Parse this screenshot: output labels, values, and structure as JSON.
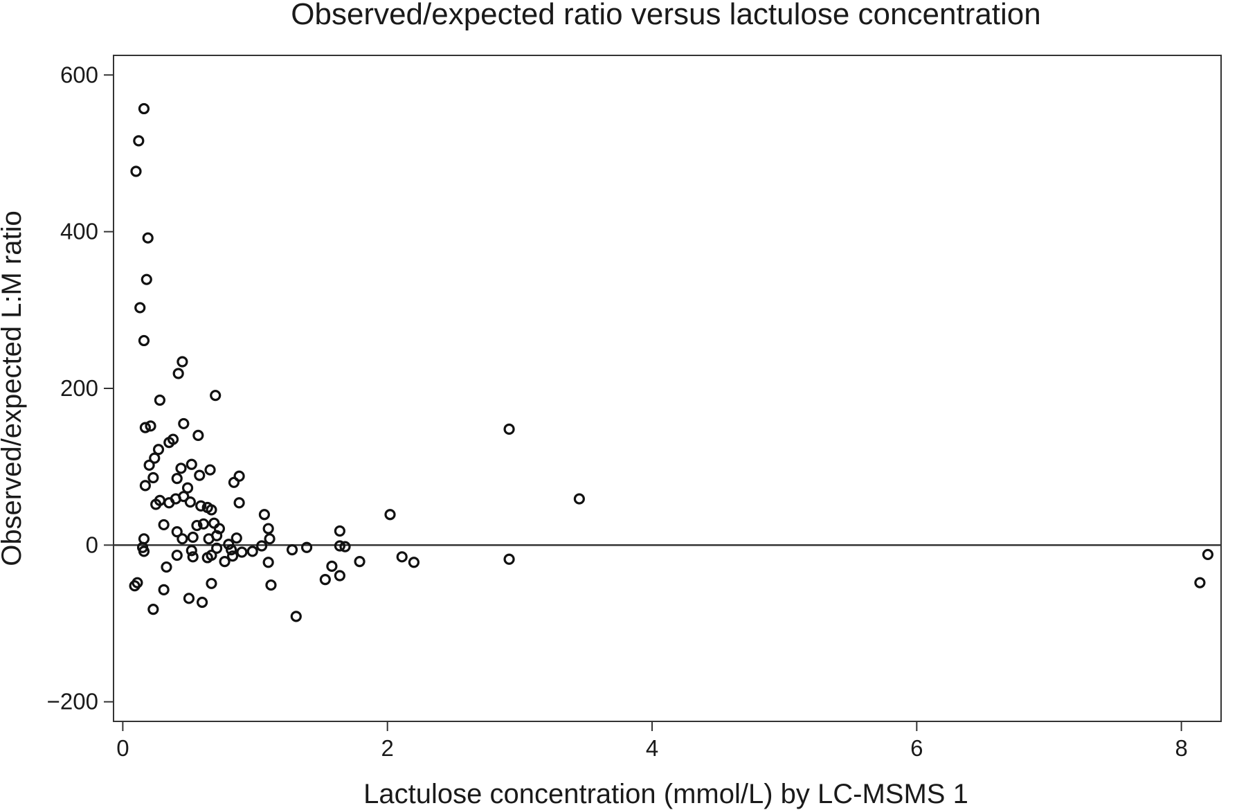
{
  "chart_data": {
    "type": "scatter",
    "title": "Observed/expected ratio versus lactulose concentration",
    "xlabel": "Lactulose concentration (mmol/L) by LC-MSMS 1",
    "ylabel": "Observed/expected L:M ratio",
    "xlim": [
      -0.07,
      8.3
    ],
    "ylim": [
      -225,
      625
    ],
    "xticks": [
      0,
      2,
      4,
      6,
      8
    ],
    "yticks": [
      -200,
      0,
      200,
      400,
      600
    ],
    "xtick_labels": [
      "0",
      "2",
      "4",
      "6",
      "8"
    ],
    "ytick_labels": [
      "−200",
      "0",
      "200",
      "400",
      "600"
    ],
    "reference_line_y": 0,
    "grid": false,
    "legend": "none",
    "points": [
      {
        "x": 0.16,
        "y": 557
      },
      {
        "x": 0.12,
        "y": 516
      },
      {
        "x": 0.1,
        "y": 477
      },
      {
        "x": 0.19,
        "y": 392
      },
      {
        "x": 0.18,
        "y": 339
      },
      {
        "x": 0.13,
        "y": 303
      },
      {
        "x": 0.16,
        "y": 261
      },
      {
        "x": 0.45,
        "y": 234
      },
      {
        "x": 0.42,
        "y": 219
      },
      {
        "x": 0.7,
        "y": 191
      },
      {
        "x": 0.28,
        "y": 185
      },
      {
        "x": 0.46,
        "y": 155
      },
      {
        "x": 0.17,
        "y": 150
      },
      {
        "x": 0.21,
        "y": 152
      },
      {
        "x": 0.57,
        "y": 140
      },
      {
        "x": 0.38,
        "y": 135
      },
      {
        "x": 0.35,
        "y": 131
      },
      {
        "x": 2.92,
        "y": 148
      },
      {
        "x": 0.27,
        "y": 122
      },
      {
        "x": 0.2,
        "y": 102
      },
      {
        "x": 0.52,
        "y": 103
      },
      {
        "x": 0.44,
        "y": 98
      },
      {
        "x": 0.66,
        "y": 96
      },
      {
        "x": 0.24,
        "y": 111
      },
      {
        "x": 0.23,
        "y": 86
      },
      {
        "x": 0.41,
        "y": 85
      },
      {
        "x": 0.58,
        "y": 89
      },
      {
        "x": 0.88,
        "y": 88
      },
      {
        "x": 0.84,
        "y": 80
      },
      {
        "x": 0.17,
        "y": 76
      },
      {
        "x": 0.49,
        "y": 73
      },
      {
        "x": 0.46,
        "y": 62
      },
      {
        "x": 0.4,
        "y": 59
      },
      {
        "x": 0.28,
        "y": 57
      },
      {
        "x": 0.51,
        "y": 55
      },
      {
        "x": 0.35,
        "y": 54
      },
      {
        "x": 0.25,
        "y": 52
      },
      {
        "x": 0.88,
        "y": 54
      },
      {
        "x": 0.59,
        "y": 50
      },
      {
        "x": 0.64,
        "y": 48
      },
      {
        "x": 0.67,
        "y": 45
      },
      {
        "x": 3.45,
        "y": 59
      },
      {
        "x": 2.02,
        "y": 39
      },
      {
        "x": 1.07,
        "y": 39
      },
      {
        "x": 0.31,
        "y": 26
      },
      {
        "x": 0.56,
        "y": 25
      },
      {
        "x": 0.61,
        "y": 27
      },
      {
        "x": 0.69,
        "y": 28
      },
      {
        "x": 0.73,
        "y": 21
      },
      {
        "x": 0.41,
        "y": 17
      },
      {
        "x": 1.1,
        "y": 21
      },
      {
        "x": 1.64,
        "y": 18
      },
      {
        "x": 0.16,
        "y": 8
      },
      {
        "x": 0.45,
        "y": 8
      },
      {
        "x": 0.53,
        "y": 10
      },
      {
        "x": 0.65,
        "y": 8
      },
      {
        "x": 0.71,
        "y": 12
      },
      {
        "x": 0.86,
        "y": 9
      },
      {
        "x": 1.11,
        "y": 8
      },
      {
        "x": 0.8,
        "y": 1
      },
      {
        "x": 1.05,
        "y": -1
      },
      {
        "x": 1.64,
        "y": -1
      },
      {
        "x": 1.68,
        "y": -2
      },
      {
        "x": 1.39,
        "y": -3
      },
      {
        "x": 0.16,
        "y": -8
      },
      {
        "x": 0.15,
        "y": -3
      },
      {
        "x": 0.52,
        "y": -7
      },
      {
        "x": 0.71,
        "y": -4
      },
      {
        "x": 0.82,
        "y": -6
      },
      {
        "x": 0.9,
        "y": -9
      },
      {
        "x": 0.98,
        "y": -8
      },
      {
        "x": 1.28,
        "y": -6
      },
      {
        "x": 0.41,
        "y": -13
      },
      {
        "x": 0.53,
        "y": -15
      },
      {
        "x": 0.64,
        "y": -16
      },
      {
        "x": 0.67,
        "y": -13
      },
      {
        "x": 0.83,
        "y": -14
      },
      {
        "x": 2.11,
        "y": -15
      },
      {
        "x": 2.92,
        "y": -18
      },
      {
        "x": 0.77,
        "y": -21
      },
      {
        "x": 1.1,
        "y": -22
      },
      {
        "x": 1.79,
        "y": -21
      },
      {
        "x": 2.2,
        "y": -22
      },
      {
        "x": 1.58,
        "y": -27
      },
      {
        "x": 0.33,
        "y": -28
      },
      {
        "x": 1.64,
        "y": -39
      },
      {
        "x": 1.53,
        "y": -44
      },
      {
        "x": 0.09,
        "y": -52
      },
      {
        "x": 0.11,
        "y": -48
      },
      {
        "x": 0.67,
        "y": -49
      },
      {
        "x": 1.12,
        "y": -51
      },
      {
        "x": 0.31,
        "y": -57
      },
      {
        "x": 0.5,
        "y": -68
      },
      {
        "x": 0.6,
        "y": -73
      },
      {
        "x": 0.23,
        "y": -82
      },
      {
        "x": 1.31,
        "y": -91
      },
      {
        "x": 8.2,
        "y": -12
      },
      {
        "x": 8.14,
        "y": -48
      }
    ]
  }
}
